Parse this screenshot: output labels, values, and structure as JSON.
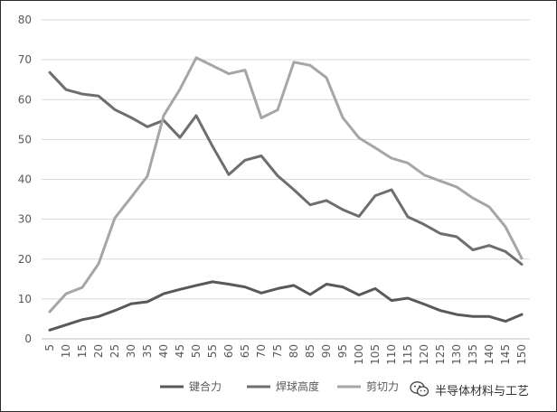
{
  "chart_data": {
    "type": "line",
    "title": "",
    "xlabel": "",
    "ylabel": "",
    "ylim": [
      0,
      80
    ],
    "yticks": [
      0,
      10,
      20,
      30,
      40,
      50,
      60,
      70,
      80
    ],
    "grid": true,
    "legend_position": "bottom",
    "categories": [
      "5",
      "10",
      "15",
      "20",
      "25",
      "30",
      "35",
      "40",
      "45",
      "50",
      "55",
      "60",
      "65",
      "70",
      "75",
      "80",
      "85",
      "90",
      "95",
      "100",
      "105",
      "110",
      "115",
      "120",
      "125",
      "130",
      "135",
      "140",
      "145",
      "150"
    ],
    "series": [
      {
        "name": "键合力",
        "color": "#595959",
        "values": [
          2.2,
          3.5,
          4.8,
          5.6,
          7.1,
          8.8,
          9.3,
          11.3,
          12.4,
          13.4,
          14.3,
          13.7,
          13.0,
          11.5,
          12.6,
          13.4,
          11.1,
          13.7,
          13.0,
          11.0,
          12.6,
          9.6,
          10.2,
          8.7,
          7.1,
          6.1,
          5.6,
          5.6,
          4.4,
          6.1
        ]
      },
      {
        "name": "焊球高度",
        "color": "#6e6e6e",
        "values": [
          66.8,
          62.5,
          61.4,
          60.9,
          57.5,
          55.5,
          53.2,
          54.8,
          50.5,
          56.0,
          48.3,
          41.2,
          44.8,
          45.9,
          40.9,
          37.4,
          33.6,
          34.7,
          32.4,
          30.7,
          35.9,
          37.4,
          30.6,
          28.7,
          26.4,
          25.6,
          22.3,
          23.4,
          21.9,
          18.7
        ]
      },
      {
        "name": "剪切力",
        "color": "#a6a6a6",
        "values": [
          6.8,
          11.3,
          12.9,
          18.8,
          30.3,
          35.5,
          40.8,
          56.0,
          62.6,
          70.5,
          68.5,
          66.5,
          67.4,
          55.4,
          57.4,
          69.4,
          68.6,
          65.5,
          55.5,
          50.4,
          47.9,
          45.3,
          44.1,
          41.1,
          39.6,
          38.1,
          35.3,
          33.1,
          28.1,
          20.2
        ]
      }
    ]
  },
  "watermark": {
    "icon": "wechat-icon",
    "text": "半导体材料与工艺"
  }
}
